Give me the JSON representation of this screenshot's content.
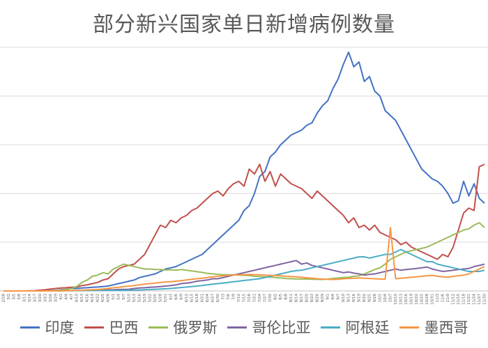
{
  "chart_data": {
    "type": "line",
    "title": "部分新兴国家单日新增病例数量",
    "xlabel": "",
    "ylabel": "",
    "ylim": [
      0,
      100000
    ],
    "grid": true,
    "legend_position": "bottom",
    "x": [
      "2/28",
      "3/2",
      "3/5",
      "3/8",
      "3/11",
      "3/14",
      "3/17",
      "3/20",
      "3/23",
      "3/26",
      "3/29",
      "4/1",
      "4/4",
      "4/7",
      "4/10",
      "4/13",
      "4/16",
      "4/19",
      "4/22",
      "4/25",
      "4/28",
      "5/1",
      "5/4",
      "5/7",
      "5/10",
      "5/13",
      "5/16",
      "5/19",
      "5/22",
      "5/25",
      "5/28",
      "5/31",
      "6/3",
      "6/6",
      "6/9",
      "6/12",
      "6/15",
      "6/18",
      "6/21",
      "6/24",
      "6/27",
      "6/30",
      "7/3",
      "7/6",
      "7/9",
      "7/12",
      "7/15",
      "7/18",
      "7/21",
      "7/24",
      "7/27",
      "7/30",
      "8/2",
      "8/5",
      "8/8",
      "8/11",
      "8/14",
      "8/17",
      "8/20",
      "8/23",
      "8/26",
      "8/29",
      "9/1",
      "9/4",
      "9/7",
      "9/10",
      "9/13",
      "9/16",
      "9/19",
      "9/22",
      "9/25",
      "9/28",
      "10/1",
      "10/4",
      "10/7",
      "10/10",
      "10/13",
      "10/16",
      "10/19",
      "10/22",
      "10/25",
      "10/28",
      "10/31",
      "11/3",
      "11/6",
      "11/9",
      "11/12",
      "11/15",
      "11/18",
      "11/21",
      "11/24",
      "11/27",
      "11/30"
    ],
    "series": [
      {
        "name": "印度",
        "color": "#4472C4",
        "values": [
          0,
          0,
          0,
          0,
          0,
          0,
          0,
          50,
          100,
          150,
          250,
          500,
          700,
          1000,
          1000,
          1200,
          1300,
          1500,
          1600,
          1800,
          2000,
          2500,
          3000,
          3500,
          4000,
          4500,
          5500,
          6000,
          6500,
          7000,
          8000,
          9000,
          9500,
          10000,
          11000,
          12000,
          13000,
          14000,
          15000,
          17000,
          19000,
          21000,
          23000,
          25000,
          27000,
          29000,
          33000,
          35000,
          40000,
          47000,
          49000,
          55000,
          57000,
          60000,
          62000,
          64000,
          65000,
          66000,
          68000,
          69000,
          73000,
          76000,
          78000,
          83000,
          87000,
          93000,
          98000,
          92000,
          94000,
          86000,
          88000,
          82000,
          80000,
          74000,
          72000,
          70000,
          66000,
          62000,
          58000,
          54000,
          50000,
          48000,
          46000,
          45000,
          43000,
          40000,
          36000,
          37000,
          45000,
          39000,
          44000,
          38000,
          36000
        ]
      },
      {
        "name": "巴西",
        "color": "#C0504D",
        "values": [
          0,
          0,
          0,
          0,
          0,
          50,
          100,
          300,
          500,
          800,
          1000,
          1200,
          1300,
          1500,
          1600,
          2200,
          2500,
          3000,
          3500,
          4500,
          5000,
          7000,
          9000,
          10000,
          10500,
          11000,
          13000,
          15000,
          19000,
          23000,
          27000,
          26000,
          29000,
          28000,
          30000,
          31000,
          33000,
          34000,
          36000,
          38000,
          40000,
          41000,
          39000,
          42000,
          44000,
          45000,
          43000,
          50000,
          48000,
          52000,
          45000,
          49000,
          43000,
          48000,
          46000,
          44000,
          43000,
          42000,
          40000,
          38000,
          41000,
          39000,
          37000,
          35000,
          33000,
          31000,
          28000,
          30000,
          26000,
          27000,
          25000,
          27000,
          24000,
          23000,
          22000,
          21000,
          19000,
          20000,
          18000,
          17000,
          16000,
          15000,
          14000,
          13000,
          15000,
          14000,
          18000,
          25000,
          32000,
          34000,
          33000,
          51000,
          52000
        ]
      },
      {
        "name": "俄罗斯",
        "color": "#9BBB59",
        "values": [
          0,
          0,
          0,
          0,
          0,
          0,
          0,
          0,
          50,
          100,
          200,
          400,
          600,
          1000,
          1800,
          3500,
          4500,
          6000,
          6500,
          7500,
          7000,
          9000,
          10000,
          11000,
          10500,
          10000,
          9500,
          9000,
          9000,
          8800,
          8800,
          8600,
          8700,
          8500,
          8800,
          8500,
          8200,
          7900,
          7600,
          7200,
          7000,
          6800,
          6700,
          6600,
          6700,
          6500,
          6400,
          6300,
          6000,
          5900,
          5800,
          5700,
          5500,
          5300,
          5100,
          5000,
          4900,
          4900,
          4850,
          4800,
          4750,
          4700,
          4900,
          5100,
          5300,
          5500,
          5600,
          6000,
          6200,
          7000,
          7900,
          8800,
          9500,
          11000,
          13000,
          14000,
          15000,
          16000,
          16500,
          17000,
          17500,
          18000,
          19000,
          20000,
          21000,
          22000,
          23000,
          24000,
          25000,
          25500,
          27000,
          28000,
          26000
        ]
      },
      {
        "name": "哥伦比亚",
        "color": "#8064A2",
        "values": [
          0,
          0,
          0,
          0,
          0,
          0,
          0,
          0,
          0,
          50,
          80,
          100,
          100,
          120,
          150,
          200,
          250,
          300,
          400,
          400,
          450,
          500,
          600,
          650,
          700,
          1000,
          1200,
          1300,
          1500,
          1600,
          1800,
          2000,
          2200,
          2500,
          3000,
          3200,
          3500,
          4000,
          4200,
          4500,
          5000,
          5000,
          5500,
          6000,
          6500,
          7000,
          7500,
          8000,
          8500,
          9000,
          9500,
          10000,
          10500,
          11000,
          11500,
          12000,
          12500,
          11000,
          11500,
          10500,
          10000,
          9500,
          9000,
          8500,
          8000,
          7500,
          7800,
          7300,
          7000,
          6500,
          6800,
          7000,
          7500,
          8000,
          8500,
          9000,
          8500,
          8800,
          9000,
          9200,
          9500,
          9800,
          9000,
          8500,
          8000,
          8200,
          8500,
          8800,
          9000,
          9200,
          10000,
          10500,
          11000
        ]
      },
      {
        "name": "阿根廷",
        "color": "#4BACC6",
        "values": [
          0,
          0,
          0,
          0,
          0,
          0,
          0,
          0,
          0,
          0,
          50,
          80,
          100,
          100,
          120,
          130,
          140,
          150,
          160,
          170,
          180,
          200,
          220,
          240,
          260,
          300,
          400,
          500,
          600,
          700,
          800,
          900,
          1000,
          1200,
          1400,
          1600,
          1800,
          2000,
          2200,
          2500,
          2800,
          3000,
          3200,
          3500,
          3800,
          4000,
          4300,
          4500,
          4800,
          5000,
          5500,
          6000,
          6500,
          7000,
          7500,
          8000,
          8300,
          8500,
          9000,
          9500,
          10000,
          10500,
          11000,
          11500,
          12000,
          12500,
          13000,
          13500,
          14000,
          14000,
          13500,
          14000,
          14500,
          15000,
          15000,
          16000,
          17000,
          16000,
          15000,
          14000,
          13000,
          12000,
          12000,
          11000,
          10500,
          10000,
          9500,
          9000,
          8500,
          8000,
          8000,
          8000,
          8500
        ]
      },
      {
        "name": "墨西哥",
        "color": "#F79646",
        "values": [
          0,
          0,
          0,
          0,
          0,
          0,
          0,
          0,
          0,
          0,
          50,
          80,
          100,
          150,
          200,
          300,
          400,
          500,
          600,
          800,
          1000,
          1300,
          1500,
          1800,
          2000,
          2200,
          2500,
          2800,
          3000,
          3200,
          3500,
          3700,
          3800,
          4000,
          4200,
          4500,
          4800,
          5000,
          5200,
          5500,
          5800,
          6000,
          6200,
          6400,
          6500,
          6600,
          6700,
          6800,
          6700,
          6600,
          6500,
          6400,
          6300,
          6200,
          6000,
          5900,
          5800,
          5600,
          5400,
          5200,
          5000,
          4900,
          4800,
          4700,
          4800,
          5000,
          5100,
          5200,
          5300,
          5200,
          5100,
          5000,
          4900,
          4800,
          26000,
          5000,
          5200,
          5400,
          5600,
          5800,
          6000,
          6200,
          6400,
          6000,
          5800,
          5600,
          6000,
          6200,
          6500,
          7000,
          8000,
          9000,
          10000
        ]
      }
    ]
  }
}
